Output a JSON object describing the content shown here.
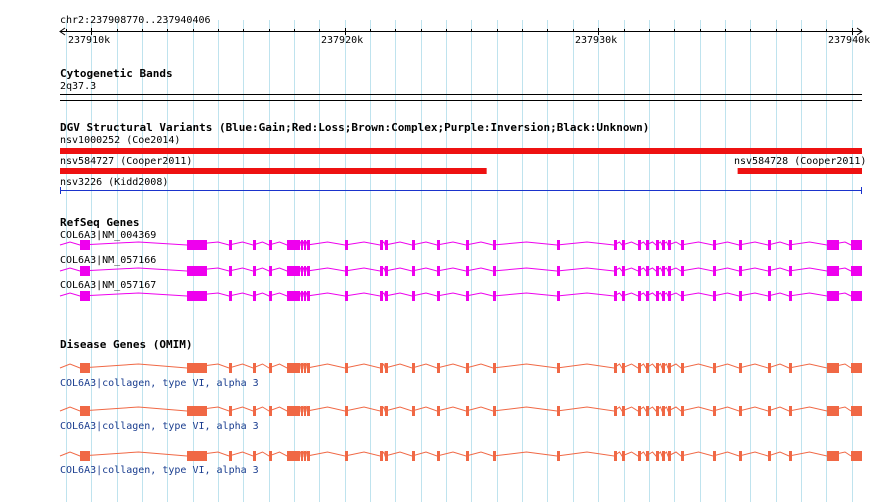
{
  "coordinate_label": "chr2:237908770..237940406",
  "ruler": {
    "ticks": [
      {
        "label": "237910k",
        "pos": 237910000
      },
      {
        "label": "237920k",
        "pos": 237920000
      },
      {
        "label": "237930k",
        "pos": 237930000
      },
      {
        "label": "237940k",
        "pos": 237940000
      }
    ]
  },
  "tracks": {
    "cytoband": {
      "title": "Cytogenetic Bands",
      "band": "2q37.3"
    },
    "dgv": {
      "title": "DGV Structural Variants (Blue:Gain;Red:Loss;Brown:Complex;Purple:Inversion;Black:Unknown)",
      "variants": [
        {
          "label": "nsv1000252 (Coe2014)",
          "start": 237908770,
          "end": 237940406,
          "color": "#ee1111",
          "type": "Loss"
        },
        {
          "label": "nsv584727 (Cooper2011)",
          "start": 237908770,
          "end": 237925600,
          "color": "#ee1111",
          "type": "Loss"
        },
        {
          "label": "nsv584728 (Cooper2011)",
          "start": 237935500,
          "end": 237940406,
          "color": "#ee1111",
          "type": "Loss"
        },
        {
          "label": "nsv3226 (Kidd2008)",
          "start": 237908770,
          "end": 237940406,
          "color": "#1a33cc",
          "type": "Gain"
        }
      ]
    },
    "refseq": {
      "title": "RefSeq Genes",
      "color": "#ee00ee",
      "transcripts": [
        {
          "label": "COL6A3|NM_004369"
        },
        {
          "label": "COL6A3|NM_057166"
        },
        {
          "label": "COL6A3|NM_057167"
        }
      ]
    },
    "omim": {
      "title": "Disease Genes (OMIM)",
      "color": "#f06845",
      "genes": [
        {
          "label": "COL6A3|collagen, type VI, alpha 3"
        },
        {
          "label": "COL6A3|collagen, type VI, alpha 3"
        },
        {
          "label": "COL6A3|collagen, type VI, alpha 3"
        }
      ]
    }
  }
}
